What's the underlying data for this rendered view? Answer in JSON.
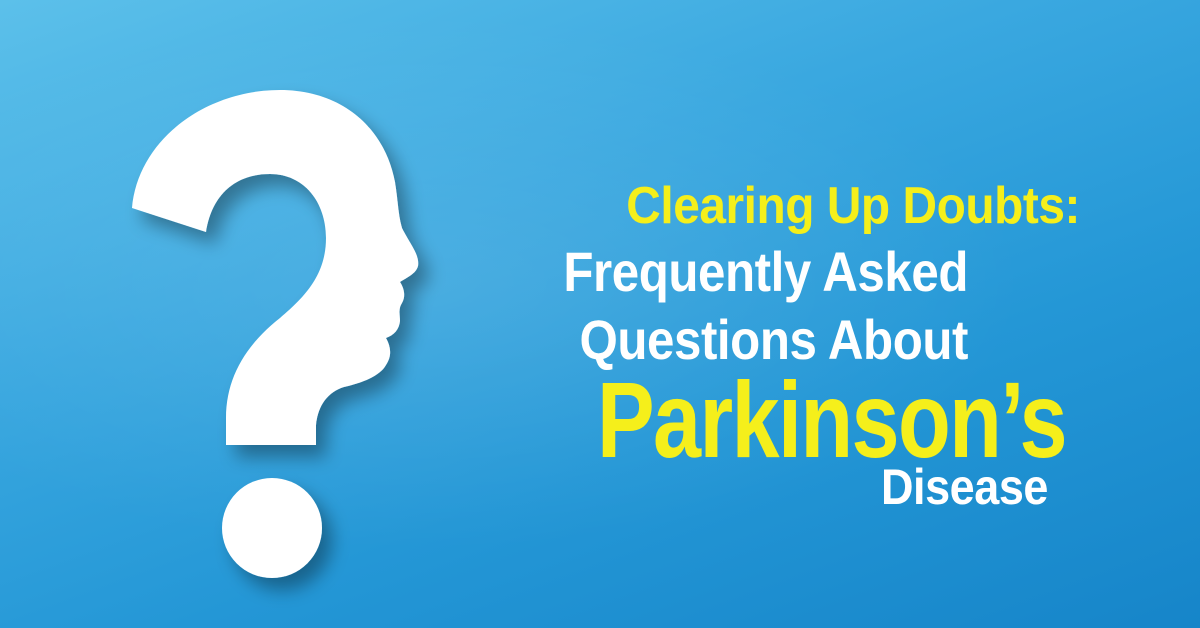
{
  "banner": {
    "background_colors": [
      "#5cc0ea",
      "#2497d6",
      "#1685c9"
    ],
    "text_colors": {
      "accent": "#f5ef1b",
      "primary": "#ffffff"
    },
    "graphic": "question-mark-head-silhouette-icon",
    "headline": {
      "line1": "Clearing Up Doubts:",
      "line2": "Frequently Asked",
      "line3": "Questions About",
      "line4": "Parkinson’s",
      "line5": "Disease"
    }
  }
}
